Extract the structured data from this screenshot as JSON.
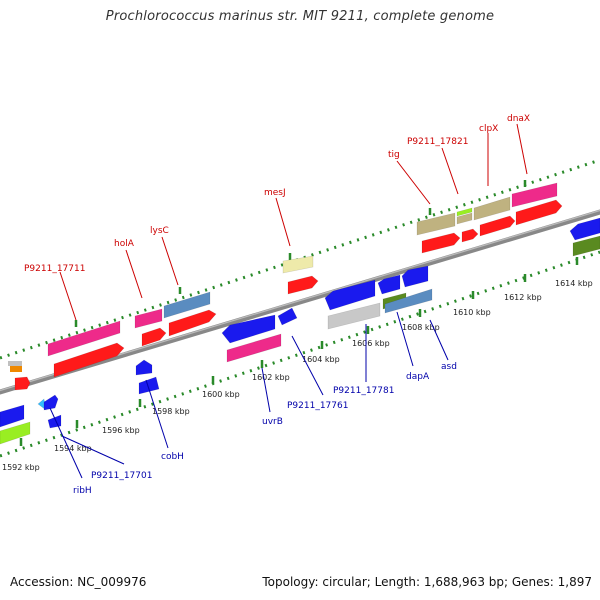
{
  "title": "Prochlorococcus marinus str. MIT 9211, complete genome",
  "footer": {
    "accession_label": "Accession: NC_009976",
    "summary_label": "Topology: circular; Length: 1,688,963 bp; Genes: 1,897"
  },
  "colors": {
    "backbone": "#888888",
    "tick": "#2a8a2a",
    "label_forward": "#cc0000",
    "label_reverse": "#0000aa"
  },
  "kbp_labels": [
    "1592 kbp",
    "1594 kbp",
    "1596 kbp",
    "1598 kbp",
    "1600 kbp",
    "1602 kbp",
    "1604 kbp",
    "1606 kbp",
    "1608 kbp",
    "1610 kbp",
    "1612 kbp",
    "1614 kbp"
  ],
  "forward_gene_labels": [
    "P9211_17711",
    "holA",
    "lysC",
    "mesJ",
    "tig",
    "P9211_17821",
    "clpX",
    "dnaX"
  ],
  "reverse_gene_labels": [
    "ribH",
    "P9211_17701",
    "cobH",
    "uvrB",
    "P9211_17761",
    "P9211_17781",
    "dapA",
    "asd"
  ]
}
